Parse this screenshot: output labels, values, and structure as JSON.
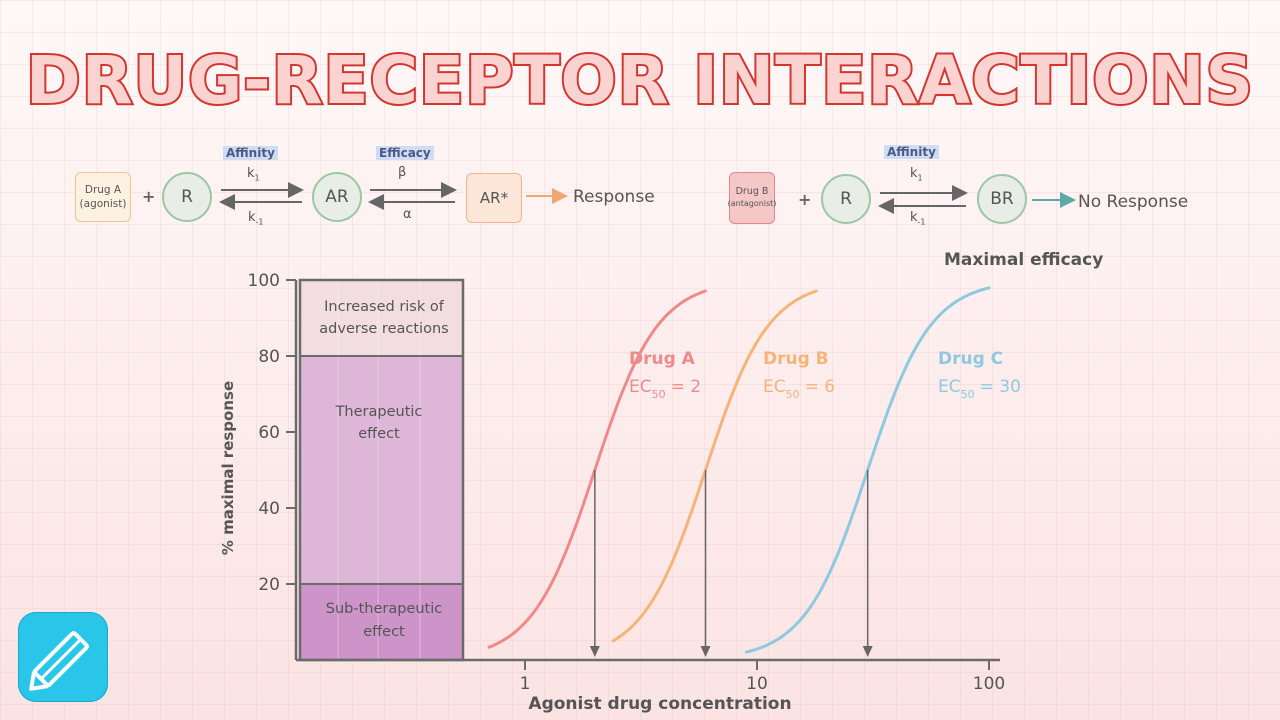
{
  "title": "DRUG-RECEPTOR INTERACTIONS",
  "scheme_a": {
    "drug_line1": "Drug A",
    "drug_line2": "(agonist)",
    "plus": "+",
    "receptor": "R",
    "affinity": "Affinity",
    "k_fwd": "k",
    "k_fwd_sub": "1",
    "k_rev": "k",
    "k_rev_sub": "-1",
    "complex": "AR",
    "efficacy": "Efficacy",
    "beta": "β",
    "alpha": "α",
    "active": "AR*",
    "response": "Response"
  },
  "scheme_b": {
    "drug_line1": "Drug B",
    "drug_line2": "(antagonist)",
    "plus": "+",
    "receptor": "R",
    "affinity": "Affinity",
    "k_fwd": "k",
    "k_fwd_sub": "1",
    "k_rev": "k",
    "k_rev_sub": "-1",
    "complex": "BR",
    "response": "No Response"
  },
  "chart_data": {
    "type": "line",
    "xlabel": "Agonist drug concentration",
    "ylabel": "% maximal response",
    "x_scale": "log",
    "x_ticks": [
      1,
      10,
      100
    ],
    "y_ticks": [
      20,
      40,
      60,
      80,
      100
    ],
    "ylim": [
      0,
      100
    ],
    "annotation_top": "Maximal efficacy",
    "zones": [
      {
        "label": "Increased risk of adverse reactions",
        "from": 80,
        "to": 100,
        "color": "#f2dde3"
      },
      {
        "label": "Therapeutic effect",
        "from": 20,
        "to": 80,
        "color": "#deb6d8"
      },
      {
        "label": "Sub-therapeutic effect",
        "from": 0,
        "to": 20,
        "color": "#cc94c8"
      }
    ],
    "zone_text": {
      "adverse_1": "Increased risk of",
      "adverse_2": "adverse reactions",
      "therapeutic_1": "Therapeutic",
      "therapeutic_2": "effect",
      "sub_1": "Sub-therapeutic",
      "sub_2": "effect"
    },
    "series": [
      {
        "name": "Drug A",
        "ec50_label": "EC",
        "ec50_sub": "50",
        "ec50_value": "= 2",
        "ec50": 2,
        "color": "#f08a8a",
        "x_range": [
          0.7,
          6
        ]
      },
      {
        "name": "Drug B",
        "ec50_label": "EC",
        "ec50_sub": "50",
        "ec50_value": "= 6",
        "ec50": 6,
        "color": "#f6b37a",
        "x_range": [
          2.4,
          18
        ]
      },
      {
        "name": "Drug C",
        "ec50_label": "EC",
        "ec50_sub": "50",
        "ec50_value": "= 30",
        "ec50": 30,
        "color": "#8fc9df",
        "x_range": [
          9,
          100
        ]
      }
    ]
  },
  "colors": {
    "title_fill": "#fbd3d0",
    "title_stroke": "#d3362e",
    "axis": "#6b6b6b",
    "app_icon": "#29c6ea"
  },
  "icons": {
    "app": "pencil-icon"
  }
}
